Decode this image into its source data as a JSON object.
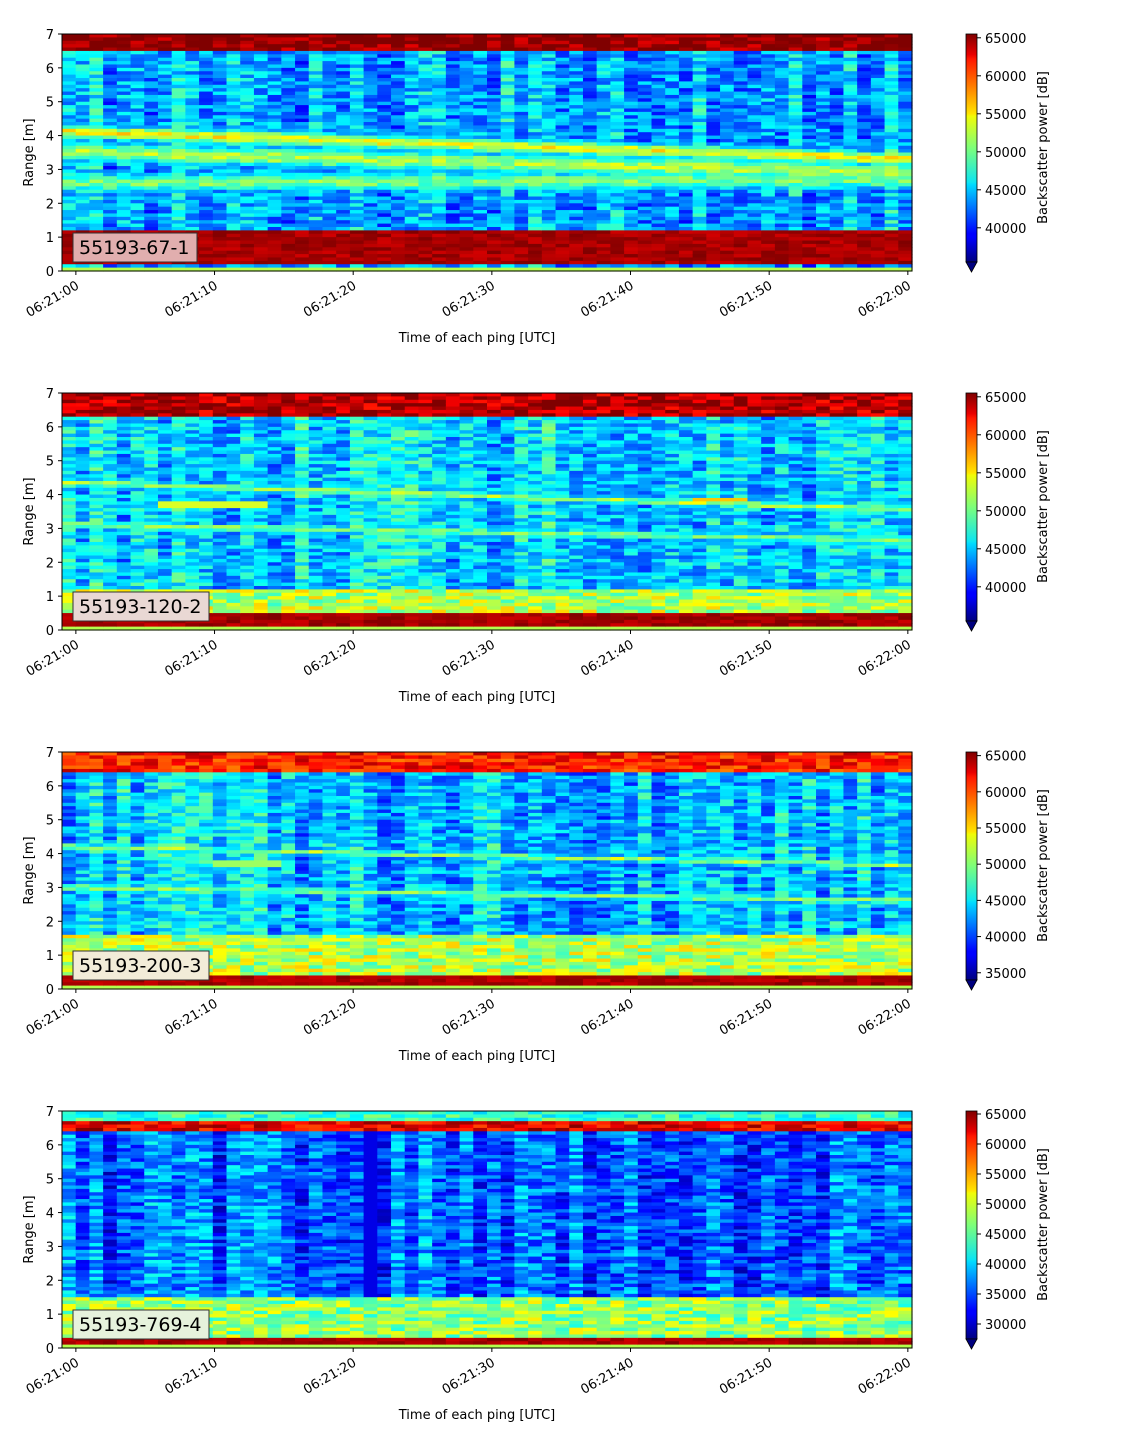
{
  "chart_data": [
    {
      "type": "heatmap",
      "panel_label": "55193-67-1",
      "label_box_color": "#e1aeae",
      "xlabel": "Time of each ping [UTC]",
      "ylabel": "Range [m]",
      "x_ticks": [
        "06:21:00",
        "06:21:10",
        "06:21:20",
        "06:21:30",
        "06:21:40",
        "06:21:50",
        "06:22:00"
      ],
      "y_ticks": [
        "0",
        "1",
        "2",
        "3",
        "4",
        "5",
        "6",
        "7"
      ],
      "ylim": [
        0,
        7
      ],
      "xlim_seconds": [
        -1,
        60.3
      ],
      "colorbar": {
        "label": "Backscatter power [dB]",
        "vmin": 35500,
        "vmax": 65500,
        "extend": "min",
        "ticks": [
          "40000",
          "45000",
          "50000",
          "55000",
          "60000",
          "65000"
        ],
        "tick_values": [
          40000,
          45000,
          50000,
          55000,
          60000,
          65000
        ]
      },
      "features": {
        "base_level": 0.3,
        "surface_band": [
          0.25,
          1.15,
          1.0
        ],
        "top_band": [
          6.5,
          7.0,
          1.0
        ],
        "trails": [
          {
            "r0": 4.1,
            "r1": 3.3,
            "v": 0.62,
            "w": 0.25
          },
          {
            "r0": 3.5,
            "r1": 2.9,
            "v": 0.55,
            "w": 0.35
          },
          {
            "r0": 2.6,
            "r1": 2.7,
            "v": 0.5,
            "w": 0.35
          }
        ]
      }
    },
    {
      "type": "heatmap",
      "panel_label": "55193-120-2",
      "label_box_color": "#e9d8d4",
      "xlabel": "Time of each ping [UTC]",
      "ylabel": "Range [m]",
      "x_ticks": [
        "06:21:00",
        "06:21:10",
        "06:21:20",
        "06:21:30",
        "06:21:40",
        "06:21:50",
        "06:22:00"
      ],
      "y_ticks": [
        "0",
        "1",
        "2",
        "3",
        "4",
        "5",
        "6",
        "7"
      ],
      "ylim": [
        0,
        7
      ],
      "xlim_seconds": [
        -1,
        60.3
      ],
      "colorbar": {
        "label": "Backscatter power [dB]",
        "vmin": 35500,
        "vmax": 65500,
        "extend": "min",
        "ticks": [
          "40000",
          "45000",
          "50000",
          "55000",
          "60000",
          "65000"
        ],
        "tick_values": [
          40000,
          45000,
          50000,
          55000,
          60000,
          65000
        ]
      },
      "features": {
        "base_level": 0.34,
        "surface_band": [
          0.1,
          0.45,
          1.0
        ],
        "near_surface": [
          0.45,
          1.2,
          0.55
        ],
        "top_band": [
          6.35,
          7.0,
          0.95
        ],
        "trails": [
          {
            "r0": 4.35,
            "r1": 3.55,
            "v": 0.55,
            "w": 0.12
          },
          {
            "r0": 3.1,
            "r1": 2.65,
            "v": 0.5,
            "w": 0.15
          }
        ],
        "patches": [
          {
            "t0": 6,
            "t1": 14,
            "r": 3.7,
            "v": 0.7,
            "w": 0.12
          },
          {
            "t0": 44,
            "t1": 48,
            "r": 3.85,
            "v": 0.68,
            "w": 0.1
          }
        ]
      }
    },
    {
      "type": "heatmap",
      "panel_label": "55193-200-3",
      "label_box_color": "#f2ecd8",
      "xlabel": "Time of each ping [UTC]",
      "ylabel": "Range [m]",
      "x_ticks": [
        "06:21:00",
        "06:21:10",
        "06:21:20",
        "06:21:30",
        "06:21:40",
        "06:21:50",
        "06:22:00"
      ],
      "y_ticks": [
        "0",
        "1",
        "2",
        "3",
        "4",
        "5",
        "6",
        "7"
      ],
      "ylim": [
        0,
        7
      ],
      "xlim_seconds": [
        -1,
        60.3
      ],
      "colorbar": {
        "label": "Backscatter power [dB]",
        "vmin": 34000,
        "vmax": 65500,
        "extend": "min",
        "ticks": [
          "35000",
          "40000",
          "45000",
          "50000",
          "55000",
          "60000",
          "65000"
        ],
        "tick_values": [
          35000,
          40000,
          45000,
          50000,
          55000,
          60000,
          65000
        ]
      },
      "features": {
        "base_level": 0.32,
        "surface_band": [
          0.1,
          0.4,
          1.0
        ],
        "near_surface": [
          0.4,
          1.6,
          0.55
        ],
        "top_band": [
          6.4,
          7.0,
          0.85
        ],
        "trails": [
          {
            "r0": 4.2,
            "r1": 3.65,
            "v": 0.55,
            "w": 0.1
          },
          {
            "r0": 3.0,
            "r1": 2.6,
            "v": 0.52,
            "w": 0.12
          }
        ],
        "patches": [
          {
            "t0": 10,
            "t1": 15,
            "r": 3.7,
            "v": 0.68,
            "w": 0.1
          },
          {
            "t0": 45,
            "t1": 48,
            "r": 3.8,
            "v": 0.65,
            "w": 0.08
          }
        ]
      }
    },
    {
      "type": "heatmap",
      "panel_label": "55193-769-4",
      "label_box_color": "#e6f2dc",
      "xlabel": "Time of each ping [UTC]",
      "ylabel": "Range [m]",
      "x_ticks": [
        "06:21:00",
        "06:21:10",
        "06:21:20",
        "06:21:30",
        "06:21:40",
        "06:21:50",
        "06:22:00"
      ],
      "y_ticks": [
        "0",
        "1",
        "2",
        "3",
        "4",
        "5",
        "6",
        "7"
      ],
      "ylim": [
        0,
        7
      ],
      "xlim_seconds": [
        -1,
        60.3
      ],
      "colorbar": {
        "label": "Backscatter power [dB]",
        "vmin": 27500,
        "vmax": 65500,
        "extend": "min",
        "ticks": [
          "30000",
          "35000",
          "40000",
          "45000",
          "50000",
          "55000",
          "60000",
          "65000"
        ],
        "tick_values": [
          30000,
          35000,
          40000,
          45000,
          50000,
          55000,
          60000,
          65000
        ]
      },
      "features": {
        "base_level": 0.22,
        "surface_band": [
          0.1,
          0.3,
          1.0
        ],
        "near_surface": [
          0.3,
          1.5,
          0.52
        ],
        "top_band": [
          6.4,
          6.7,
          0.9
        ],
        "top_cap": [
          6.7,
          7.0,
          0.42
        ],
        "dark_column": [
          21,
          22,
          0.1
        ]
      }
    }
  ]
}
